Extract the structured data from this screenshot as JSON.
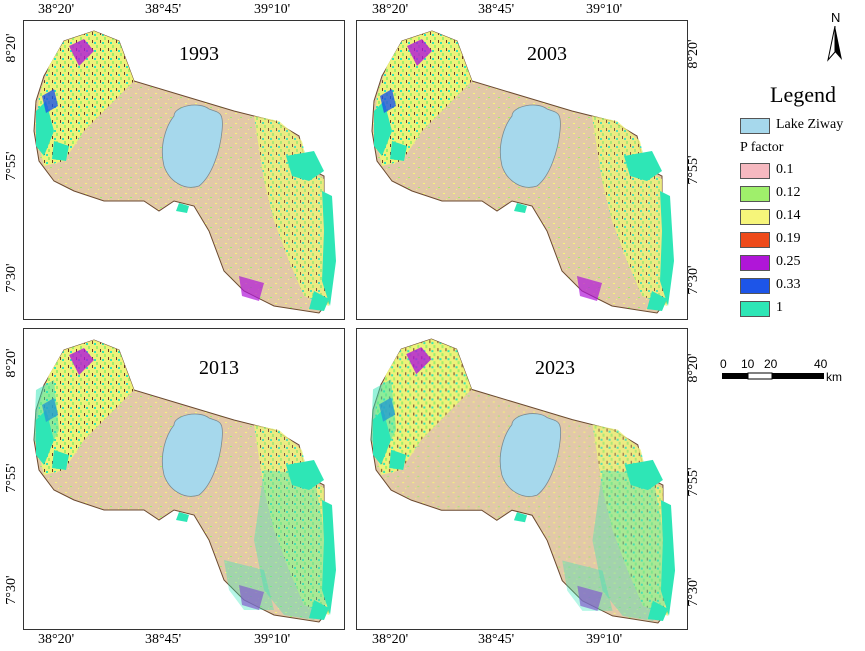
{
  "x_ticks": [
    "38°20'",
    "38°45'",
    "39°10'"
  ],
  "y_ticks": [
    "8°20'",
    "7°55'",
    "7°30'"
  ],
  "panels": [
    {
      "year": "1993"
    },
    {
      "year": "2003"
    },
    {
      "year": "2013"
    },
    {
      "year": "2023"
    }
  ],
  "north_label": "N",
  "legend": {
    "title": "Legend",
    "lake_label": "Lake Ziway",
    "lake_color": "#a6d8ec",
    "p_factor_title": "P factor",
    "items": [
      {
        "label": "0.1",
        "color": "#f6b9c0"
      },
      {
        "label": "0.12",
        "color": "#9fef6b"
      },
      {
        "label": "0.14",
        "color": "#f6f57a"
      },
      {
        "label": "0.19",
        "color": "#ee4a1a"
      },
      {
        "label": "0.25",
        "color": "#b016d8"
      },
      {
        "label": "0.33",
        "color": "#1d55e8"
      },
      {
        "label": "1",
        "color": "#2ee6b6"
      }
    ]
  },
  "scale_bar": {
    "labels": [
      "0",
      "10",
      "20",
      "40"
    ],
    "unit": "km"
  }
}
